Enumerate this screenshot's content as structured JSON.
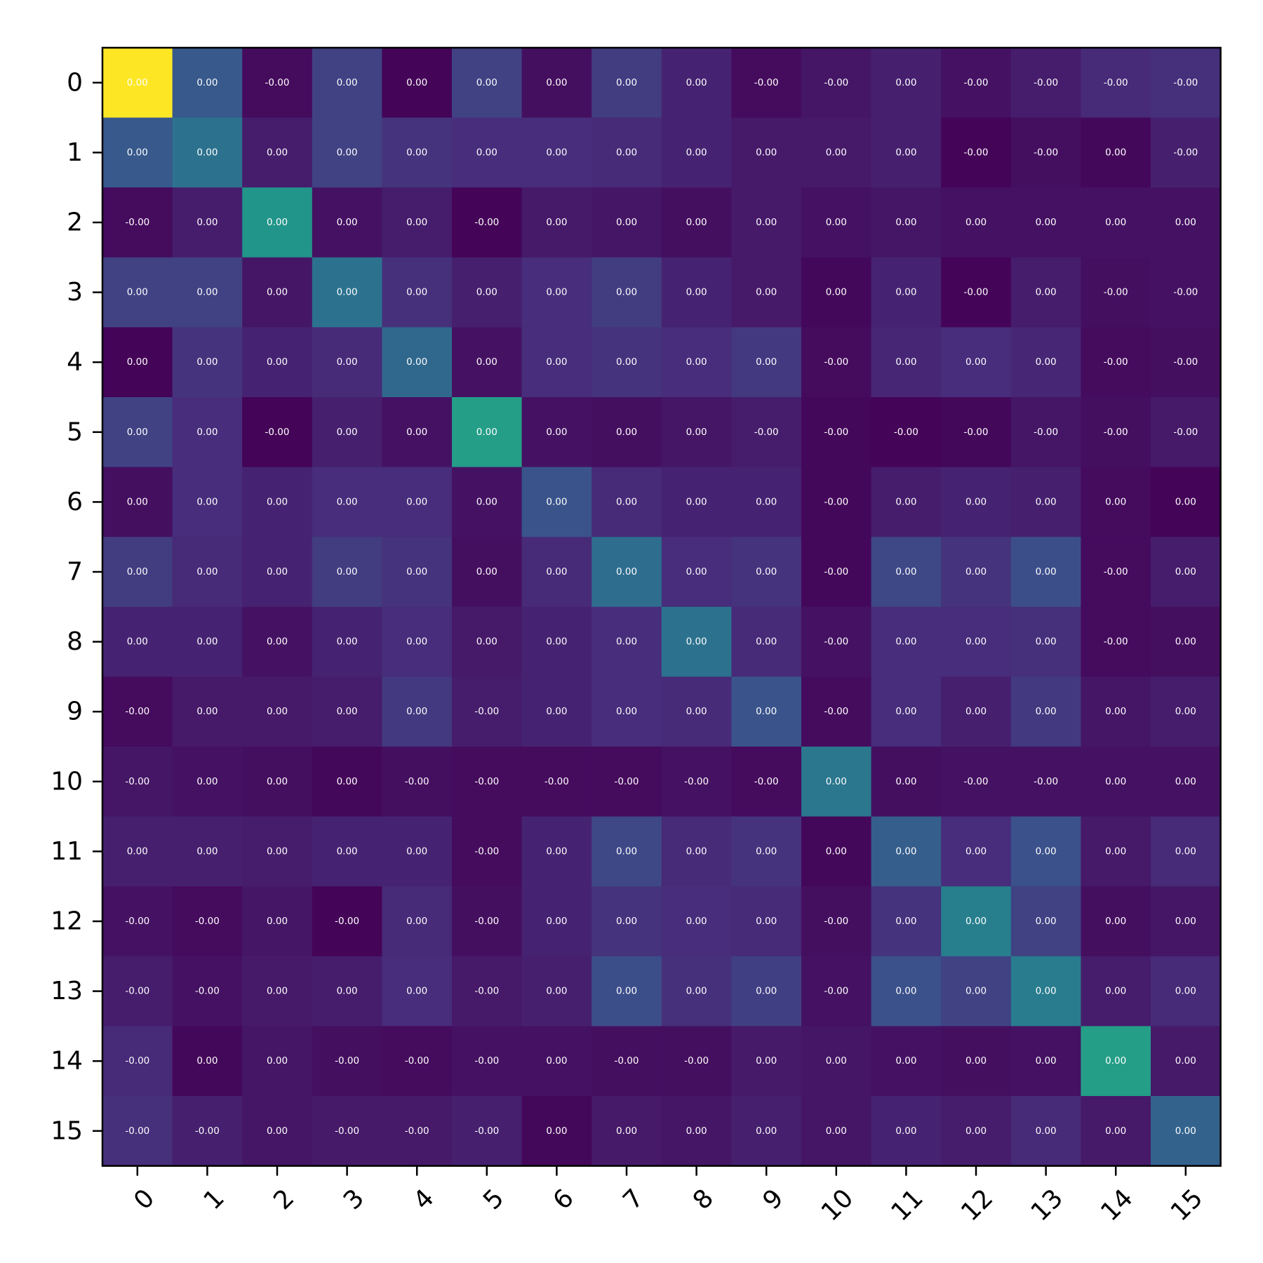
{
  "chart_data": {
    "type": "heatmap",
    "colormap": "viridis",
    "title": "",
    "xlabel": "",
    "ylabel": "",
    "x_tick_labels": [
      "0",
      "1",
      "2",
      "3",
      "4",
      "5",
      "6",
      "7",
      "8",
      "9",
      "10",
      "11",
      "12",
      "13",
      "14",
      "15"
    ],
    "y_tick_labels": [
      "0",
      "1",
      "2",
      "3",
      "4",
      "5",
      "6",
      "7",
      "8",
      "9",
      "10",
      "11",
      "12",
      "13",
      "14",
      "15"
    ],
    "color_range": [
      0.0,
      1.0
    ],
    "color_intensity": [
      [
        1.0,
        0.28,
        0.03,
        0.2,
        0.01,
        0.2,
        0.04,
        0.18,
        0.1,
        0.03,
        0.06,
        0.09,
        0.05,
        0.08,
        0.12,
        0.14
      ],
      [
        0.28,
        0.38,
        0.08,
        0.2,
        0.15,
        0.13,
        0.13,
        0.12,
        0.1,
        0.07,
        0.07,
        0.09,
        0.01,
        0.04,
        0.02,
        0.09
      ],
      [
        0.03,
        0.08,
        0.52,
        0.05,
        0.08,
        0.01,
        0.07,
        0.06,
        0.04,
        0.07,
        0.05,
        0.06,
        0.05,
        0.05,
        0.05,
        0.05
      ],
      [
        0.2,
        0.2,
        0.06,
        0.38,
        0.14,
        0.09,
        0.13,
        0.18,
        0.1,
        0.07,
        0.02,
        0.1,
        0.01,
        0.08,
        0.04,
        0.05
      ],
      [
        0.01,
        0.15,
        0.1,
        0.12,
        0.34,
        0.05,
        0.13,
        0.15,
        0.13,
        0.17,
        0.03,
        0.11,
        0.13,
        0.11,
        0.03,
        0.04
      ],
      [
        0.2,
        0.13,
        0.01,
        0.09,
        0.05,
        0.56,
        0.05,
        0.04,
        0.06,
        0.08,
        0.02,
        0.01,
        0.02,
        0.06,
        0.04,
        0.07
      ],
      [
        0.04,
        0.13,
        0.1,
        0.13,
        0.13,
        0.05,
        0.26,
        0.12,
        0.1,
        0.1,
        0.02,
        0.08,
        0.1,
        0.09,
        0.03,
        0.01
      ],
      [
        0.18,
        0.12,
        0.1,
        0.18,
        0.15,
        0.04,
        0.12,
        0.36,
        0.13,
        0.15,
        0.02,
        0.22,
        0.15,
        0.24,
        0.03,
        0.08
      ],
      [
        0.1,
        0.1,
        0.05,
        0.1,
        0.13,
        0.07,
        0.1,
        0.13,
        0.38,
        0.12,
        0.05,
        0.13,
        0.13,
        0.14,
        0.03,
        0.04
      ],
      [
        0.03,
        0.07,
        0.07,
        0.08,
        0.17,
        0.08,
        0.1,
        0.13,
        0.12,
        0.26,
        0.03,
        0.13,
        0.09,
        0.17,
        0.06,
        0.08
      ],
      [
        0.06,
        0.05,
        0.04,
        0.02,
        0.04,
        0.03,
        0.03,
        0.03,
        0.05,
        0.03,
        0.4,
        0.04,
        0.05,
        0.05,
        0.05,
        0.05
      ],
      [
        0.09,
        0.09,
        0.08,
        0.1,
        0.1,
        0.03,
        0.1,
        0.22,
        0.12,
        0.15,
        0.02,
        0.3,
        0.13,
        0.25,
        0.07,
        0.12
      ],
      [
        0.05,
        0.03,
        0.06,
        0.01,
        0.12,
        0.04,
        0.1,
        0.15,
        0.13,
        0.12,
        0.04,
        0.15,
        0.43,
        0.2,
        0.04,
        0.06
      ],
      [
        0.08,
        0.05,
        0.07,
        0.08,
        0.13,
        0.07,
        0.09,
        0.24,
        0.14,
        0.19,
        0.05,
        0.25,
        0.2,
        0.42,
        0.08,
        0.12
      ],
      [
        0.12,
        0.02,
        0.06,
        0.04,
        0.03,
        0.05,
        0.05,
        0.04,
        0.04,
        0.07,
        0.06,
        0.05,
        0.04,
        0.05,
        0.56,
        0.07
      ],
      [
        0.14,
        0.09,
        0.06,
        0.07,
        0.07,
        0.09,
        0.02,
        0.07,
        0.06,
        0.09,
        0.06,
        0.1,
        0.08,
        0.12,
        0.07,
        0.32
      ]
    ],
    "cell_labels": [
      [
        "0.00",
        "0.00",
        "-0.00",
        "0.00",
        "0.00",
        "0.00",
        "0.00",
        "0.00",
        "0.00",
        "-0.00",
        "-0.00",
        "0.00",
        "-0.00",
        "-0.00",
        "-0.00",
        "-0.00"
      ],
      [
        "0.00",
        "0.00",
        "0.00",
        "0.00",
        "0.00",
        "0.00",
        "0.00",
        "0.00",
        "0.00",
        "0.00",
        "0.00",
        "0.00",
        "-0.00",
        "-0.00",
        "0.00",
        "-0.00"
      ],
      [
        "-0.00",
        "0.00",
        "0.00",
        "0.00",
        "0.00",
        "-0.00",
        "0.00",
        "0.00",
        "0.00",
        "0.00",
        "0.00",
        "0.00",
        "0.00",
        "0.00",
        "0.00",
        "0.00"
      ],
      [
        "0.00",
        "0.00",
        "0.00",
        "0.00",
        "0.00",
        "0.00",
        "0.00",
        "0.00",
        "0.00",
        "0.00",
        "0.00",
        "0.00",
        "-0.00",
        "0.00",
        "-0.00",
        "-0.00"
      ],
      [
        "0.00",
        "0.00",
        "0.00",
        "0.00",
        "0.00",
        "0.00",
        "0.00",
        "0.00",
        "0.00",
        "0.00",
        "-0.00",
        "0.00",
        "0.00",
        "0.00",
        "-0.00",
        "-0.00"
      ],
      [
        "0.00",
        "0.00",
        "-0.00",
        "0.00",
        "0.00",
        "0.00",
        "0.00",
        "0.00",
        "0.00",
        "-0.00",
        "-0.00",
        "-0.00",
        "-0.00",
        "-0.00",
        "-0.00",
        "-0.00"
      ],
      [
        "0.00",
        "0.00",
        "0.00",
        "0.00",
        "0.00",
        "0.00",
        "0.00",
        "0.00",
        "0.00",
        "0.00",
        "-0.00",
        "0.00",
        "0.00",
        "0.00",
        "0.00",
        "0.00"
      ],
      [
        "0.00",
        "0.00",
        "0.00",
        "0.00",
        "0.00",
        "0.00",
        "0.00",
        "0.00",
        "0.00",
        "0.00",
        "-0.00",
        "0.00",
        "0.00",
        "0.00",
        "-0.00",
        "0.00"
      ],
      [
        "0.00",
        "0.00",
        "0.00",
        "0.00",
        "0.00",
        "0.00",
        "0.00",
        "0.00",
        "0.00",
        "0.00",
        "-0.00",
        "0.00",
        "0.00",
        "0.00",
        "-0.00",
        "0.00"
      ],
      [
        "-0.00",
        "0.00",
        "0.00",
        "0.00",
        "0.00",
        "-0.00",
        "0.00",
        "0.00",
        "0.00",
        "0.00",
        "-0.00",
        "0.00",
        "0.00",
        "0.00",
        "0.00",
        "0.00"
      ],
      [
        "-0.00",
        "0.00",
        "0.00",
        "0.00",
        "-0.00",
        "-0.00",
        "-0.00",
        "-0.00",
        "-0.00",
        "-0.00",
        "0.00",
        "0.00",
        "-0.00",
        "-0.00",
        "0.00",
        "0.00"
      ],
      [
        "0.00",
        "0.00",
        "0.00",
        "0.00",
        "0.00",
        "-0.00",
        "0.00",
        "0.00",
        "0.00",
        "0.00",
        "0.00",
        "0.00",
        "0.00",
        "0.00",
        "0.00",
        "0.00"
      ],
      [
        "-0.00",
        "-0.00",
        "0.00",
        "-0.00",
        "0.00",
        "-0.00",
        "0.00",
        "0.00",
        "0.00",
        "0.00",
        "-0.00",
        "0.00",
        "0.00",
        "0.00",
        "0.00",
        "0.00"
      ],
      [
        "-0.00",
        "-0.00",
        "0.00",
        "0.00",
        "0.00",
        "-0.00",
        "0.00",
        "0.00",
        "0.00",
        "0.00",
        "-0.00",
        "0.00",
        "0.00",
        "0.00",
        "0.00",
        "0.00"
      ],
      [
        "-0.00",
        "0.00",
        "0.00",
        "-0.00",
        "-0.00",
        "-0.00",
        "0.00",
        "-0.00",
        "-0.00",
        "0.00",
        "0.00",
        "0.00",
        "0.00",
        "0.00",
        "0.00",
        "0.00"
      ],
      [
        "-0.00",
        "-0.00",
        "0.00",
        "-0.00",
        "-0.00",
        "-0.00",
        "0.00",
        "0.00",
        "0.00",
        "0.00",
        "0.00",
        "0.00",
        "0.00",
        "0.00",
        "0.00",
        "0.00"
      ]
    ],
    "grid": false,
    "legend": "none",
    "colorbar": false
  }
}
